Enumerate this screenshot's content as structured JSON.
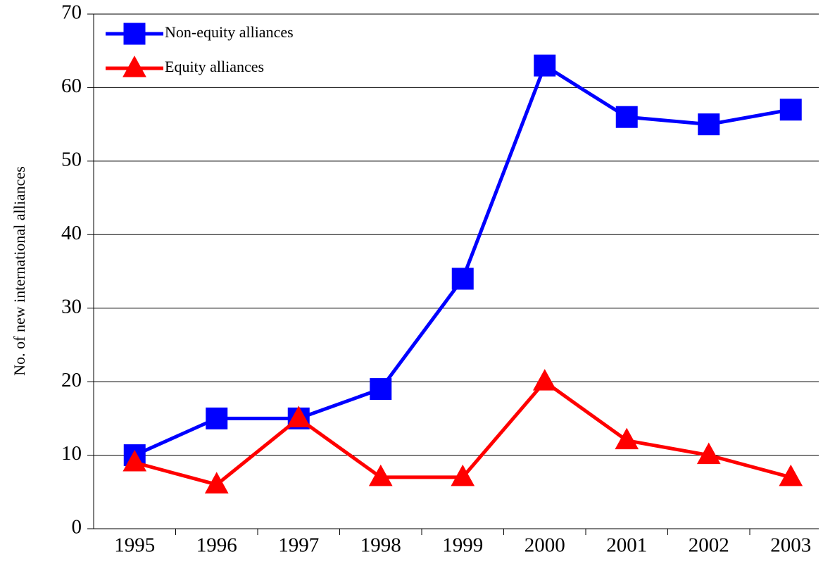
{
  "chart_data": {
    "type": "line",
    "y_label": "No. of new international alliances",
    "categories": [
      "1995",
      "1996",
      "1997",
      "1998",
      "1999",
      "2000",
      "2001",
      "2002",
      "2003"
    ],
    "series": [
      {
        "name": "Non-equity alliances",
        "color": "#0000ff",
        "marker": "square",
        "values": [
          10,
          15,
          15,
          19,
          34,
          63,
          56,
          55,
          57
        ]
      },
      {
        "name": "Equity alliances",
        "color": "#ff0000",
        "marker": "triangle",
        "values": [
          9,
          6,
          15,
          7,
          7,
          20,
          12,
          10,
          7
        ]
      }
    ],
    "ylim": [
      0,
      70
    ],
    "yticks": [
      0,
      10,
      20,
      30,
      40,
      50,
      60,
      70
    ],
    "grid": true,
    "legend": "upper left"
  }
}
